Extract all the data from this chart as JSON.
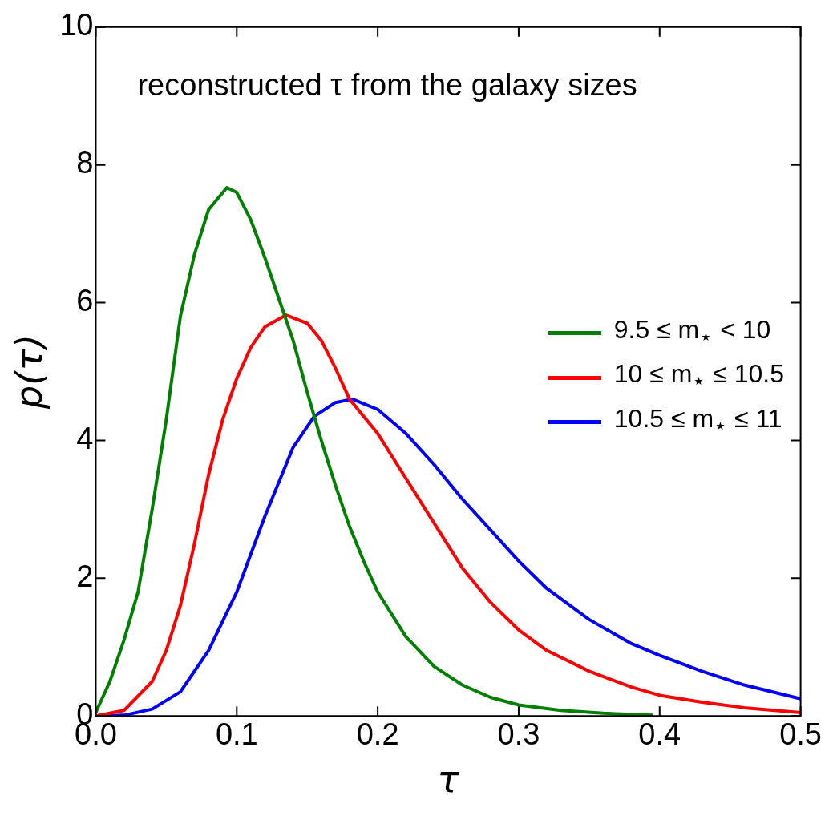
{
  "chart_data": {
    "type": "line",
    "xlabel": "τ",
    "ylabel": "p(τ)",
    "annotations": [
      "reconstructed τ from the galaxy sizes"
    ],
    "xlim": [
      0,
      0.5
    ],
    "xticks": [
      {
        "value": 0,
        "label": "0.0"
      },
      0.1,
      0.2,
      0.3,
      0.4,
      0.5
    ],
    "ylim": [
      0,
      10
    ],
    "yticks": [
      0,
      2,
      4,
      6,
      8,
      10
    ],
    "grid": false,
    "legend": "right",
    "marker": "none",
    "line_style": "solid",
    "series": [
      {
        "name": "9.5 ≤ m$_{⋆}$ < 10",
        "color": "#008000",
        "x": [
          0,
          0.01,
          0.02,
          0.03,
          0.04,
          0.05,
          0.06,
          0.07,
          0.08,
          0.093,
          0.1,
          0.11,
          0.12,
          0.13,
          0.14,
          0.15,
          0.16,
          0.17,
          0.18,
          0.19,
          0.2,
          0.22,
          0.24,
          0.26,
          0.28,
          0.3,
          0.33,
          0.36,
          0.395
        ],
        "values": [
          0.05,
          0.5,
          1.1,
          1.8,
          3.0,
          4.3,
          5.8,
          6.7,
          7.35,
          7.67,
          7.6,
          7.2,
          6.65,
          6.05,
          5.45,
          4.7,
          4.0,
          3.35,
          2.75,
          2.25,
          1.8,
          1.15,
          0.72,
          0.45,
          0.27,
          0.16,
          0.08,
          0.04,
          0.01
        ]
      },
      {
        "name": "10 ≤ m$_{⋆}$ ≤ 10.5",
        "color": "#ff0000",
        "x": [
          0,
          0.02,
          0.04,
          0.05,
          0.06,
          0.07,
          0.08,
          0.09,
          0.1,
          0.11,
          0.12,
          0.135,
          0.15,
          0.16,
          0.17,
          0.18,
          0.19,
          0.2,
          0.22,
          0.24,
          0.26,
          0.28,
          0.3,
          0.32,
          0.35,
          0.38,
          0.4,
          0.43,
          0.46,
          0.5
        ],
        "values": [
          0,
          0.08,
          0.5,
          0.95,
          1.6,
          2.5,
          3.5,
          4.3,
          4.9,
          5.35,
          5.65,
          5.82,
          5.7,
          5.45,
          5.05,
          4.6,
          4.35,
          4.1,
          3.45,
          2.8,
          2.15,
          1.65,
          1.25,
          0.95,
          0.65,
          0.42,
          0.3,
          0.2,
          0.12,
          0.05
        ]
      },
      {
        "name": "10.5 ≤ m$_{⋆}$ ≤ 11",
        "color": "#0000ff",
        "x": [
          0,
          0.02,
          0.04,
          0.06,
          0.08,
          0.1,
          0.12,
          0.14,
          0.155,
          0.17,
          0.182,
          0.2,
          0.22,
          0.24,
          0.26,
          0.28,
          0.3,
          0.32,
          0.35,
          0.38,
          0.4,
          0.43,
          0.46,
          0.5
        ],
        "values": [
          0,
          0.01,
          0.1,
          0.35,
          0.95,
          1.8,
          2.9,
          3.9,
          4.35,
          4.55,
          4.6,
          4.45,
          4.1,
          3.65,
          3.15,
          2.7,
          2.25,
          1.85,
          1.4,
          1.05,
          0.88,
          0.65,
          0.45,
          0.25
        ]
      }
    ]
  }
}
